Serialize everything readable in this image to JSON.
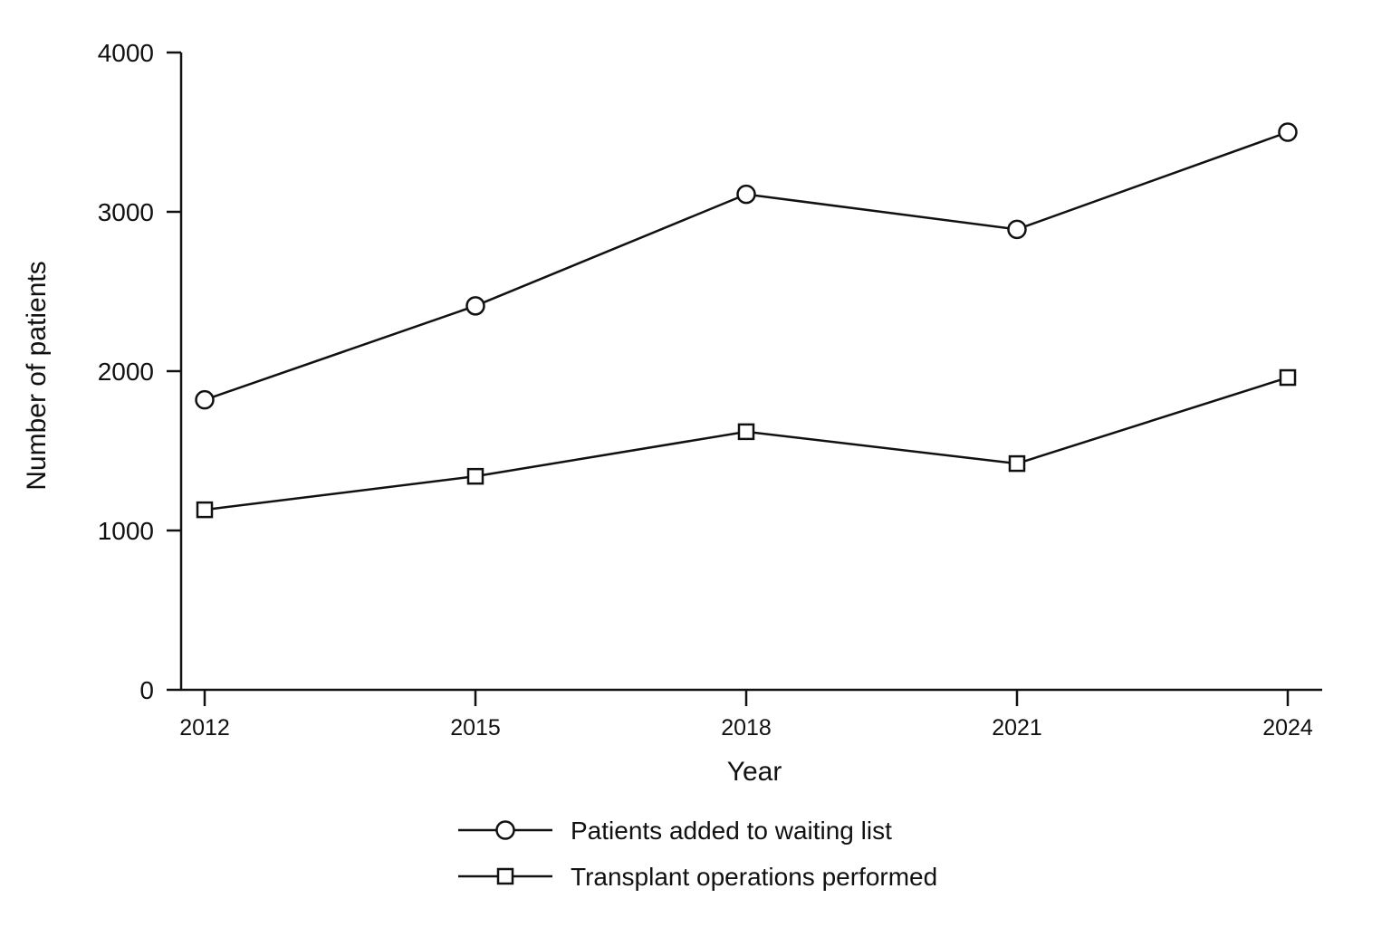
{
  "chart_data": {
    "type": "line",
    "title": "",
    "xlabel": "Year",
    "ylabel": "Number of patients",
    "x": [
      2012,
      2015,
      2018,
      2021,
      2024
    ],
    "x_ticks": [
      "2012",
      "2015",
      "2018",
      "2021",
      "2024"
    ],
    "y_ticks": [
      "0",
      "1000",
      "2000",
      "3000",
      "4000"
    ],
    "ylim": [
      0,
      4000
    ],
    "grid": false,
    "legend_position": "bottom-center",
    "series": [
      {
        "name": "Patients added to waiting list",
        "marker": "circle",
        "color": "#111111",
        "values": [
          1820,
          2410,
          3110,
          2890,
          3500
        ]
      },
      {
        "name": "Transplant operations performed",
        "marker": "square",
        "color": "#111111",
        "values": [
          1130,
          1340,
          1620,
          1420,
          1960
        ]
      }
    ]
  }
}
